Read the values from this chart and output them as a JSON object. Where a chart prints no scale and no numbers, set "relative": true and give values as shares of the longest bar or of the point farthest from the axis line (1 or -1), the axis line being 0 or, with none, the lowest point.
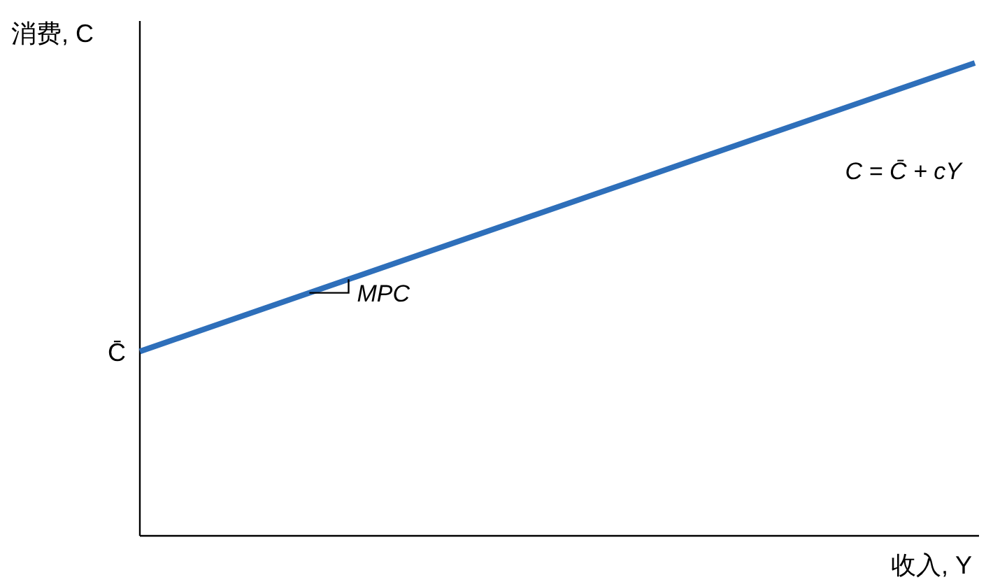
{
  "chart_data": {
    "type": "line",
    "relative": true,
    "xlabel": "收入, Y",
    "ylabel": "消费, C",
    "categories": [
      null,
      null
    ],
    "series": [
      {
        "color": "#2e6fba",
        "values": [
          0.39,
          1
        ]
      }
    ],
    "annotations": [
      "C = C̄ + cY",
      "MPC",
      "C̄"
    ],
    "marker": "none",
    "line_style": "solid"
  }
}
